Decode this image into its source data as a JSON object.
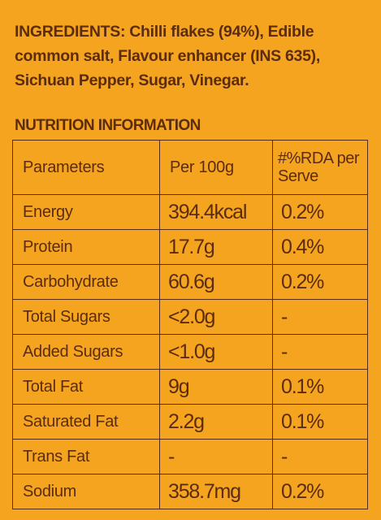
{
  "ingredients": "INGREDIENTS: Chilli flakes (94%), Edible common salt, Flavour enhancer (INS 635), Sichuan Pepper, Sugar, Vinegar.",
  "nutrition": {
    "title": "NUTRITION INFORMATION",
    "table": {
      "header": [
        "Parameters",
        "Per 100g",
        "#%RDA per Serve"
      ],
      "rows": [
        [
          "Energy",
          "394.4kcal",
          "0.2%"
        ],
        [
          "Protein",
          "17.7g",
          "0.4%"
        ],
        [
          "Carbohydrate",
          "60.6g",
          "0.2%"
        ],
        [
          "Total Sugars",
          "<2.0g",
          "-"
        ],
        [
          "Added Sugars",
          "<1.0g",
          "-"
        ],
        [
          "Total Fat",
          "9g",
          "0.1%"
        ],
        [
          "Saturated Fat",
          "2.2g",
          "0.1%"
        ],
        [
          "Trans Fat",
          "-",
          "-"
        ],
        [
          "Sodium",
          "358.7mg",
          "0.2%"
        ]
      ]
    }
  }
}
